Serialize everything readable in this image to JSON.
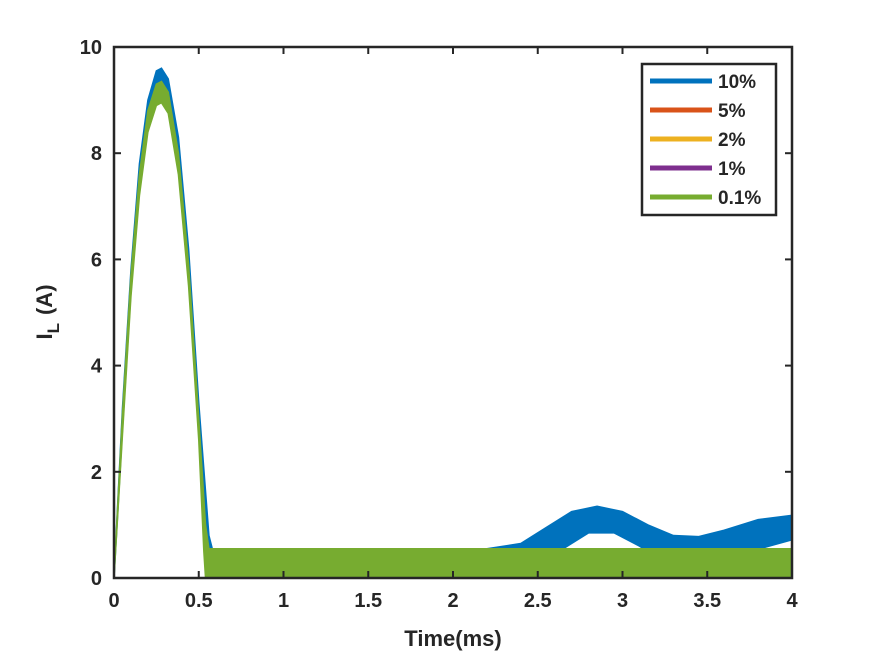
{
  "chart_data": {
    "type": "line",
    "xlabel": "Time(ms)",
    "ylabel": {
      "main": "I",
      "subscript": "L",
      "unit": "(A)"
    },
    "xlim": [
      0,
      4
    ],
    "ylim": [
      0,
      10
    ],
    "xticks": [
      "0",
      "0.5",
      "1",
      "1.5",
      "2",
      "2.5",
      "3",
      "3.5",
      "4"
    ],
    "yticks": [
      "0",
      "2",
      "4",
      "6",
      "8",
      "10"
    ],
    "grid": false,
    "legend_position": "top-right",
    "series": [
      {
        "name": "10%",
        "color": "#0072BD",
        "upper": [
          [
            0,
            0
          ],
          [
            0.05,
            3.2
          ],
          [
            0.1,
            5.8
          ],
          [
            0.15,
            7.8
          ],
          [
            0.2,
            9.0
          ],
          [
            0.25,
            9.55
          ],
          [
            0.28,
            9.6
          ],
          [
            0.32,
            9.4
          ],
          [
            0.38,
            8.3
          ],
          [
            0.44,
            6.2
          ],
          [
            0.5,
            3.3
          ],
          [
            0.56,
            0.8
          ],
          [
            0.58,
            0.55
          ],
          [
            2.0,
            0.55
          ],
          [
            2.2,
            0.55
          ],
          [
            2.4,
            0.65
          ],
          [
            2.55,
            0.95
          ],
          [
            2.7,
            1.25
          ],
          [
            2.85,
            1.35
          ],
          [
            3.0,
            1.25
          ],
          [
            3.15,
            1.0
          ],
          [
            3.3,
            0.8
          ],
          [
            3.45,
            0.78
          ],
          [
            3.6,
            0.9
          ],
          [
            3.8,
            1.1
          ],
          [
            4.0,
            1.18
          ]
        ],
        "lower": [
          [
            0,
            0
          ],
          [
            0.05,
            2.8
          ],
          [
            0.1,
            5.4
          ],
          [
            0.15,
            7.4
          ],
          [
            0.2,
            8.6
          ],
          [
            0.25,
            9.15
          ],
          [
            0.28,
            9.2
          ],
          [
            0.32,
            9.0
          ],
          [
            0.38,
            7.9
          ],
          [
            0.44,
            5.8
          ],
          [
            0.5,
            2.9
          ],
          [
            0.55,
            0.3
          ],
          [
            0.56,
            0.0
          ],
          [
            2.4,
            0.0
          ],
          [
            2.5,
            0.15
          ],
          [
            2.65,
            0.55
          ],
          [
            2.8,
            0.85
          ],
          [
            2.95,
            0.85
          ],
          [
            3.1,
            0.6
          ],
          [
            3.25,
            0.3
          ],
          [
            3.4,
            0.18
          ],
          [
            3.55,
            0.25
          ],
          [
            3.75,
            0.5
          ],
          [
            4.0,
            0.72
          ]
        ]
      },
      {
        "name": "5%",
        "color": "#D95319"
      },
      {
        "name": "2%",
        "color": "#EDB120"
      },
      {
        "name": "1%",
        "color": "#7E2F8E"
      },
      {
        "name": "0.1%",
        "color": "#77AC30",
        "upper": [
          [
            0,
            0
          ],
          [
            0.05,
            3.1
          ],
          [
            0.1,
            5.7
          ],
          [
            0.15,
            7.6
          ],
          [
            0.2,
            8.8
          ],
          [
            0.25,
            9.3
          ],
          [
            0.28,
            9.35
          ],
          [
            0.32,
            9.15
          ],
          [
            0.38,
            8.0
          ],
          [
            0.44,
            5.9
          ],
          [
            0.5,
            3.0
          ],
          [
            0.54,
            1.0
          ],
          [
            0.56,
            0.55
          ],
          [
            4.0,
            0.55
          ]
        ],
        "lower": [
          [
            0,
            0
          ],
          [
            0.05,
            2.7
          ],
          [
            0.1,
            5.3
          ],
          [
            0.15,
            7.2
          ],
          [
            0.2,
            8.4
          ],
          [
            0.25,
            8.9
          ],
          [
            0.28,
            8.95
          ],
          [
            0.32,
            8.75
          ],
          [
            0.38,
            7.6
          ],
          [
            0.44,
            5.5
          ],
          [
            0.5,
            2.6
          ],
          [
            0.53,
            0.5
          ],
          [
            0.54,
            0.0
          ],
          [
            4.0,
            0.0
          ]
        ]
      }
    ]
  }
}
